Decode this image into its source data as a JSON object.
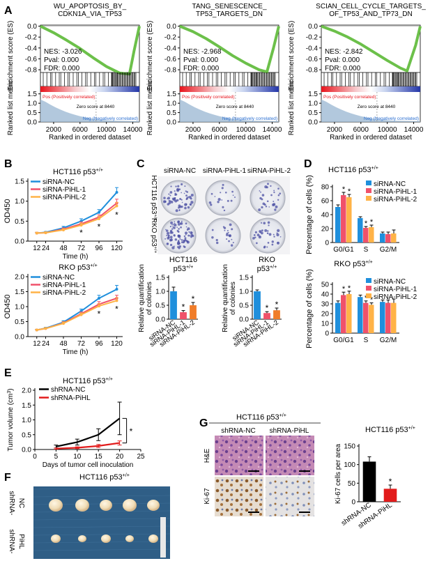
{
  "colors": {
    "gsea_curve": "#6cc04a",
    "pos_red": "#e8141c",
    "neg_blue": "#2b6fd1",
    "metric_fill": "#9fbad4",
    "nc": "#1f8fdc",
    "pihl1": "#f0516a",
    "pihl2": "#ffb347",
    "cd_pihl2": "#f07d2a",
    "shrna_nc": "#000000",
    "shrna_pihl": "#e21b1b",
    "ki67_nc": "#000000",
    "ki67_pihl": "#e21b1b"
  },
  "panels": {
    "A": "A",
    "B": "B",
    "C": "C",
    "D": "D",
    "E": "E",
    "F": "F",
    "G": "G"
  },
  "common": {
    "star": "*",
    "hct116": "HCT116 p53",
    "rko": "RKO p53",
    "sup": "+/+"
  },
  "gsea": {
    "es_label": "Enrichment score (ES)",
    "rlm_label": "Ranked list metric",
    "x_label": "Ranked in ordered dataset",
    "pos_label": "Pos (Positively correlated)",
    "neg_label": "Neg (Negatively correlated)",
    "zero_label": "Zero score at 8440",
    "x_ticks": [
      "2000",
      "6000",
      "10000",
      "14000"
    ],
    "metric_ticks": [
      "0.0",
      "0.5",
      "1.0",
      "1.5"
    ]
  },
  "chart_data": [
    {
      "type": "line",
      "id": "gsea1",
      "title_lines": [
        "WU_APOPTOSIS_BY_",
        "CDKN1A_VIA_TP53"
      ],
      "es_ticks": [
        "0.0",
        "-0.2",
        "-0.4",
        "-0.6",
        "-0.8"
      ],
      "ylim": [
        -0.85,
        0.02
      ],
      "xlim": [
        0,
        15000
      ],
      "x": [
        0,
        2000,
        4000,
        6000,
        8000,
        10000,
        12000,
        13500,
        14200,
        15000
      ],
      "values": [
        0.0,
        -0.12,
        -0.26,
        -0.41,
        -0.58,
        -0.74,
        -0.86,
        -0.88,
        -0.45,
        0.0
      ],
      "nes": "NES: -3.026",
      "pval": "Pval: 0.000",
      "fdr": "FDR: 0.000"
    },
    {
      "type": "line",
      "id": "gsea2",
      "title_lines": [
        "TANG_SENESCENCE_",
        "TP53_TARGETS_DN"
      ],
      "es_ticks": [
        "0.0",
        "-0.2",
        "-0.4",
        "-0.6",
        "-0.8"
      ],
      "ylim": [
        -0.85,
        0.02
      ],
      "xlim": [
        0,
        15000
      ],
      "x": [
        0,
        2000,
        4000,
        6000,
        8000,
        10000,
        12000,
        13200,
        14200,
        15000
      ],
      "values": [
        0.0,
        -0.1,
        -0.23,
        -0.38,
        -0.54,
        -0.68,
        -0.8,
        -0.84,
        -0.4,
        0.0
      ],
      "nes": "NES: -2.968",
      "pval": "Pval: 0.000",
      "fdr": "FDR: 0.000"
    },
    {
      "type": "line",
      "id": "gsea3",
      "title_lines": [
        "SCIAN_CELL_CYCLE_TARGETS_",
        "OF_TP53_AND_TP73_DN"
      ],
      "es_ticks": [
        "0.0",
        "-0.2",
        "-0.4",
        "-0.6",
        "-0.8"
      ],
      "ylim": [
        -0.85,
        0.02
      ],
      "xlim": [
        0,
        15000
      ],
      "x": [
        0,
        2000,
        4000,
        6000,
        8000,
        10000,
        12000,
        13000,
        14300,
        15000
      ],
      "values": [
        0.0,
        -0.09,
        -0.2,
        -0.33,
        -0.48,
        -0.63,
        -0.77,
        -0.82,
        -0.35,
        0.0
      ],
      "nes": "NES: -2.842",
      "pval": "Pval: 0.000",
      "fdr": "FDR: 0.000"
    },
    {
      "type": "line",
      "id": "growth_hct",
      "title": "HCT116 p53",
      "sup": "+/+",
      "xlabel": "Time (h)",
      "ylabel": "OD450",
      "x": [
        12,
        24,
        48,
        72,
        96,
        120
      ],
      "xticks": [
        "12",
        "24",
        "48",
        "72",
        "96",
        "120"
      ],
      "yticks": [
        "0.0",
        "0.5",
        "1.0",
        "1.5"
      ],
      "ylim": [
        0,
        1.5
      ],
      "series": [
        {
          "name": "siRNA-NC",
          "values": [
            0.2,
            0.22,
            0.33,
            0.5,
            0.72,
            1.22
          ],
          "err": [
            0.02,
            0.02,
            0.04,
            0.06,
            0.07,
            0.12
          ]
        },
        {
          "name": "siRNA-PiHL-1",
          "values": [
            0.2,
            0.21,
            0.3,
            0.43,
            0.6,
            0.95
          ],
          "err": [
            0.02,
            0.02,
            0.03,
            0.05,
            0.06,
            0.1
          ]
        },
        {
          "name": "siRNA-PiHL-2",
          "values": [
            0.2,
            0.21,
            0.28,
            0.4,
            0.56,
            0.88
          ],
          "err": [
            0.02,
            0.02,
            0.03,
            0.05,
            0.06,
            0.09
          ]
        }
      ],
      "sig_at": [
        72,
        96,
        120
      ]
    },
    {
      "type": "line",
      "id": "growth_rko",
      "title": "RKO p53",
      "sup": "+/+",
      "xlabel": "Time (h)",
      "ylabel": "OD450",
      "x": [
        12,
        24,
        48,
        72,
        96,
        120
      ],
      "xticks": [
        "12",
        "24",
        "48",
        "72",
        "96",
        "120"
      ],
      "yticks": [
        "0.0",
        "0.5",
        "1.0",
        "1.5",
        "2.0"
      ],
      "ylim": [
        0,
        2.0
      ],
      "series": [
        {
          "name": "siRNA-NC",
          "values": [
            0.22,
            0.28,
            0.48,
            0.85,
            1.28,
            1.58
          ],
          "err": [
            0.02,
            0.03,
            0.05,
            0.07,
            0.1,
            0.13
          ]
        },
        {
          "name": "siRNA-PiHL-1",
          "values": [
            0.22,
            0.27,
            0.45,
            0.76,
            1.08,
            1.28
          ],
          "err": [
            0.02,
            0.03,
            0.05,
            0.06,
            0.09,
            0.1
          ]
        },
        {
          "name": "siRNA-PiHL-2",
          "values": [
            0.22,
            0.27,
            0.44,
            0.73,
            1.02,
            1.2
          ],
          "err": [
            0.02,
            0.03,
            0.05,
            0.06,
            0.08,
            0.1
          ]
        }
      ],
      "sig_at": [
        96,
        120
      ]
    },
    {
      "type": "bar",
      "id": "colony_hct",
      "title": "HCT116",
      "title2": "p53",
      "sup": "+/+",
      "ylabel_lines": [
        "Relative quantification",
        "of colonies"
      ],
      "categories": [
        "siRNA-NC",
        "siRNA-PiHL-1",
        "siRNA-PiHL-2"
      ],
      "values": [
        1.0,
        0.25,
        0.5
      ],
      "err": [
        0.15,
        0.06,
        0.1
      ],
      "sig": [
        false,
        true,
        true
      ],
      "yticks": [
        "0.0",
        "0.5",
        "1.0",
        "1.5"
      ],
      "ylim": [
        0,
        1.5
      ]
    },
    {
      "type": "bar",
      "id": "colony_rko",
      "title": "RKO",
      "title2": "p53",
      "sup": "+/+",
      "ylabel_lines": [
        "Relative quantification",
        "of colonies"
      ],
      "categories": [
        "siRNA-NC",
        "siRNA-PiHL-1",
        "siRNA-PiHL-2"
      ],
      "values": [
        1.0,
        0.22,
        0.32
      ],
      "err": [
        0.05,
        0.05,
        0.08
      ],
      "sig": [
        false,
        true,
        true
      ],
      "yticks": [
        "0.0",
        "0.5",
        "1.0",
        "1.5"
      ],
      "ylim": [
        0,
        1.5
      ]
    },
    {
      "type": "bar",
      "id": "cycle_hct",
      "title": "HCT116 p53",
      "sup": "+/+",
      "ylabel": "Percentage of cells (%)",
      "categories": [
        "G0/G1",
        "S",
        "G2/M"
      ],
      "series": [
        {
          "name": "siRNA-NC",
          "values": [
            51,
            35,
            13
          ],
          "err": [
            3,
            2,
            2
          ]
        },
        {
          "name": "siRNA-PiHL-1",
          "values": [
            68,
            21,
            12
          ],
          "err": [
            4,
            2,
            3
          ]
        },
        {
          "name": "siRNA-PiHL-2",
          "values": [
            65,
            22,
            13
          ],
          "err": [
            4,
            3,
            5
          ]
        }
      ],
      "sig": [
        [
          false,
          true,
          true
        ],
        [
          false,
          true,
          true
        ],
        [
          false,
          false,
          false
        ]
      ],
      "yticks": [
        "0",
        "20",
        "40",
        "60",
        "80"
      ],
      "ylim": [
        0,
        80
      ]
    },
    {
      "type": "bar",
      "id": "cycle_rko",
      "title": "RKO p53",
      "sup": "+/+",
      "ylabel": "Percentage of cells (%)",
      "categories": [
        "G0/G1",
        "S",
        "G2/M"
      ],
      "series": [
        {
          "name": "siRNA-NC",
          "values": [
            31,
            37,
            32
          ],
          "err": [
            2,
            2,
            2
          ]
        },
        {
          "name": "siRNA-PiHL-1",
          "values": [
            39,
            31,
            31
          ],
          "err": [
            3,
            2,
            3
          ]
        },
        {
          "name": "siRNA-PiHL-2",
          "values": [
            40,
            29,
            31
          ],
          "err": [
            3,
            2,
            4
          ]
        }
      ],
      "sig": [
        [
          false,
          true,
          true
        ],
        [
          false,
          true,
          true
        ],
        [
          false,
          false,
          false
        ]
      ],
      "yticks": [
        "0",
        "10",
        "20",
        "30",
        "40",
        "50"
      ],
      "ylim": [
        0,
        50
      ]
    },
    {
      "type": "line",
      "id": "tumor_volume",
      "title": "HCT116 p53",
      "sup": "+/+",
      "xlabel": "Days of tumor cell inoculation",
      "ylabel": "Tumor volume (cm",
      "ylabel_sup": "3",
      "ylabel_end": ")",
      "x": [
        5,
        10,
        15,
        20
      ],
      "xticks": [
        "0",
        "5",
        "10",
        "15",
        "20",
        "25"
      ],
      "xlim": [
        0,
        25
      ],
      "yticks": [
        "0.0",
        "0.5",
        "1.0",
        "1.5",
        "2.0"
      ],
      "ylim": [
        0,
        2.0
      ],
      "series": [
        {
          "name": "shRNA-NC",
          "values": [
            0.1,
            0.25,
            0.5,
            1.05
          ],
          "err": [
            0.05,
            0.1,
            0.2,
            0.55
          ]
        },
        {
          "name": "shRNA-PiHL",
          "values": [
            0.03,
            0.06,
            0.12,
            0.22
          ],
          "err": [
            0.02,
            0.03,
            0.05,
            0.07
          ]
        }
      ]
    },
    {
      "type": "bar",
      "id": "ki67",
      "title": "HCT116 p53",
      "sup": "+/+",
      "ylabel": "Ki-67 cells per area",
      "categories": [
        "shRNA-NC",
        "shRNA-PiHL"
      ],
      "values": [
        108,
        35
      ],
      "err": [
        13,
        10
      ],
      "sig": [
        false,
        true
      ],
      "yticks": [
        "0",
        "50",
        "100",
        "150"
      ],
      "ylim": [
        0,
        150
      ]
    }
  ],
  "colony_panel": {
    "col_labels": [
      "siRNA-NC",
      "siRNA-PiHL-1",
      "siRNA-PiHL-2"
    ],
    "row_labels": [
      "HCT116 p53",
      "RKO p53"
    ],
    "sup": "+/+"
  },
  "tumor_panel": {
    "title": "HCT116 p53",
    "sup": "+/+",
    "row_nc": "shRNA-",
    "row_nc2": "NC",
    "row_pihl": "shRNA-",
    "row_pihl2": "PiHL"
  },
  "ihc_panel": {
    "title": "HCT116 p53",
    "sup": "+/+",
    "col_labels": [
      "shRNA-NC",
      "shRNA-PiHL"
    ],
    "row_labels": [
      "H&E",
      "Ki-67"
    ]
  }
}
